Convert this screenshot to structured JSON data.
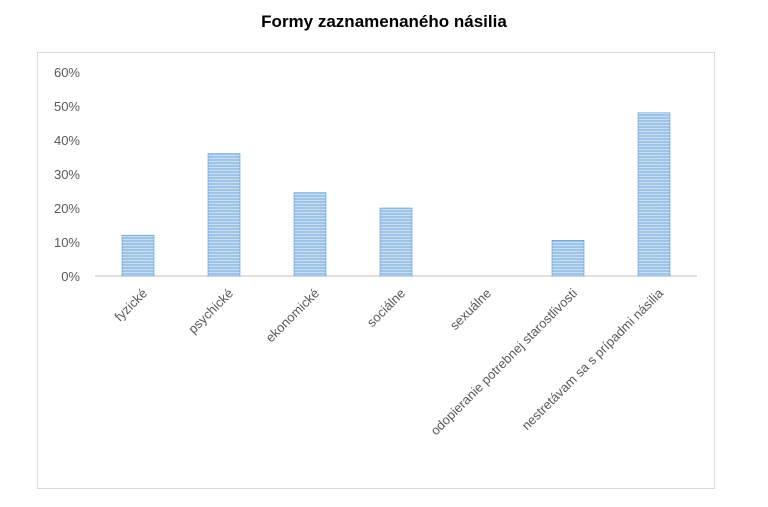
{
  "chart_data": {
    "type": "bar",
    "title": "Formy zaznamenaného násilia",
    "categories": [
      "fyzické",
      "psychické",
      "ekonomické",
      "sociálne",
      "sexuálne",
      "odopieranie potrebnej starostlivosti",
      "nestretávam sa s prípadmi násilia"
    ],
    "values": [
      12,
      36,
      24.5,
      20,
      0,
      10.5,
      48
    ],
    "value_format": "percent",
    "ylim": [
      0,
      60
    ],
    "yticks": [
      "0%",
      "10%",
      "20%",
      "30%",
      "40%",
      "50%",
      "60%"
    ],
    "xlabel": "",
    "ylabel": "",
    "grid": false,
    "legend": "none",
    "bar_color": "#9dc3e6",
    "bar_stripe_color": "#ffffff",
    "bar_border_color": "#5b9bd5"
  }
}
